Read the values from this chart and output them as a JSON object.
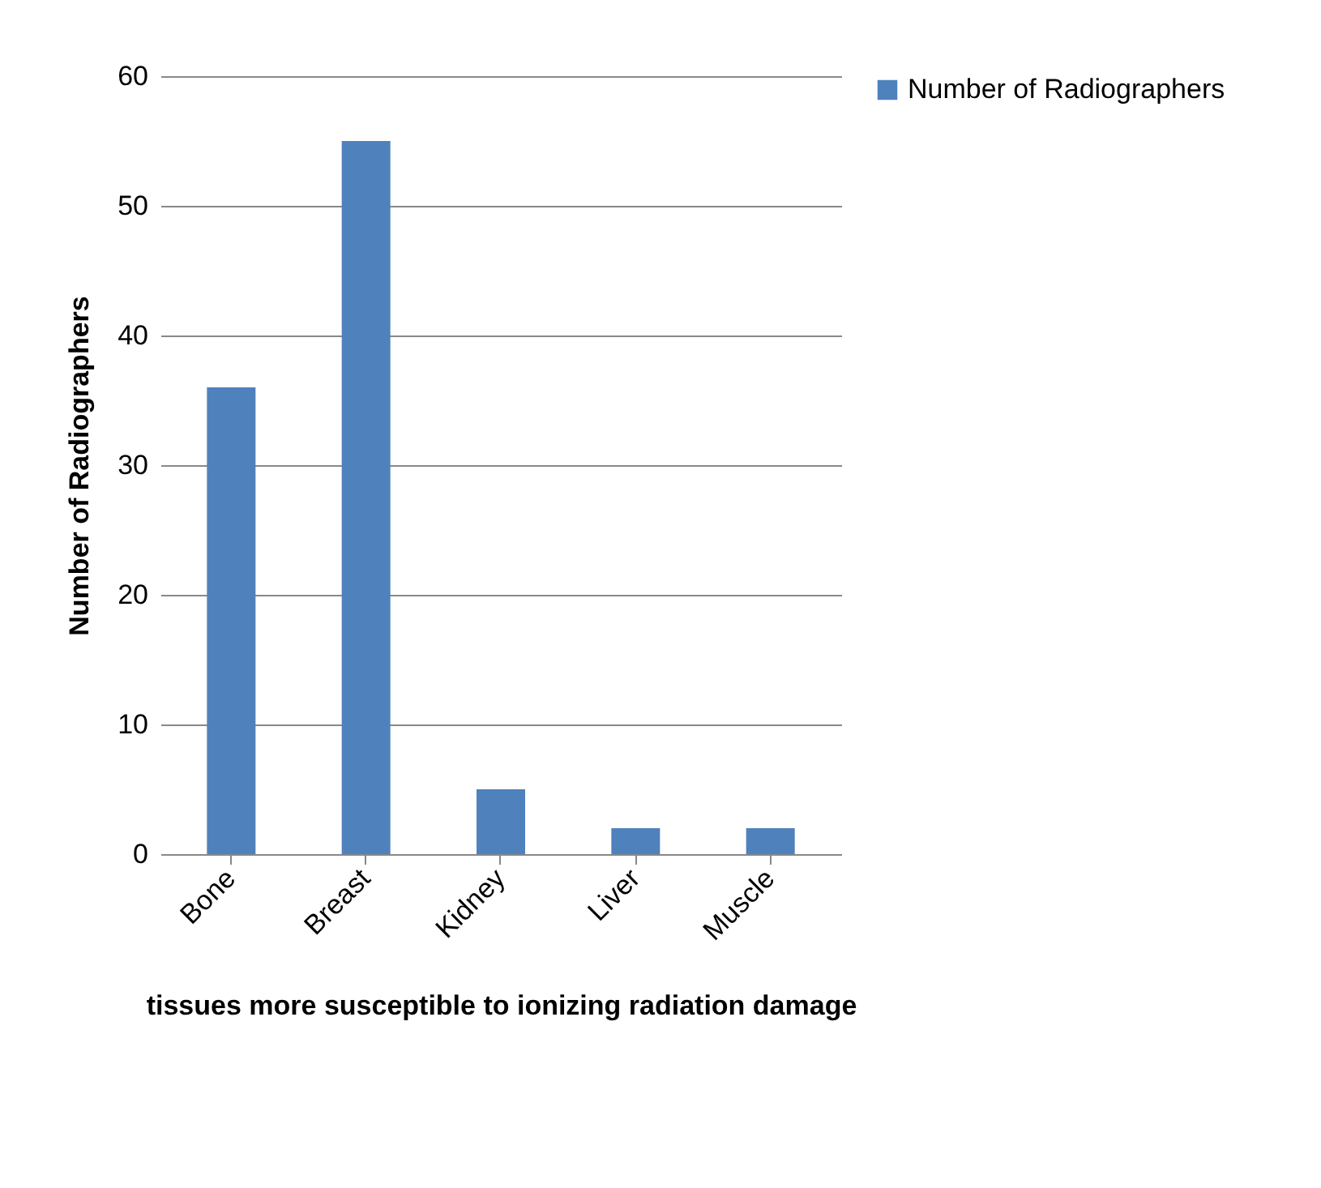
{
  "chart_data": {
    "type": "bar",
    "xlabel": "tissues more susceptible to ionizing radiation damage",
    "ylabel": "Number of Radiographers",
    "categories": [
      "Bone",
      "Breast",
      "Kidney",
      "Liver",
      "Muscle"
    ],
    "series": [
      {
        "name": "Number of Radiographers",
        "color": "#4f81bd",
        "values": [
          36,
          55,
          5,
          2,
          2
        ]
      }
    ],
    "ylim": [
      0,
      60
    ],
    "yticks": [
      0,
      10,
      20,
      30,
      40,
      50,
      60
    ],
    "grid": "y",
    "legend": "right"
  }
}
